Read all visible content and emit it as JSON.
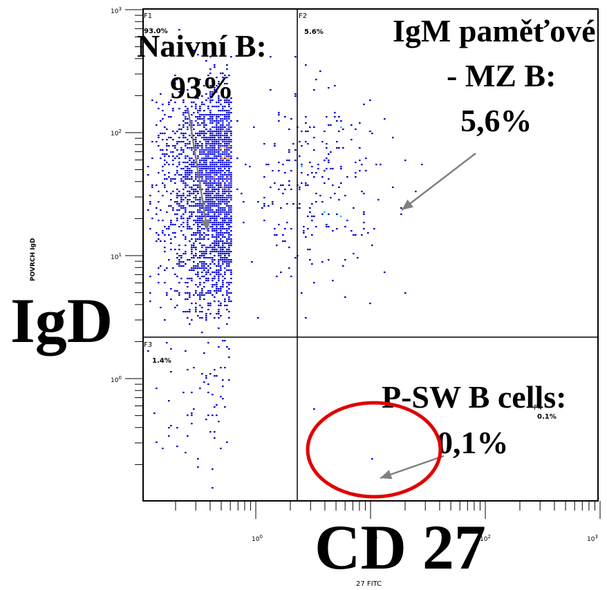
{
  "chart_data": {
    "type": "scatter",
    "subtype": "flow-cytometry-density-dot-plot",
    "x_axis": {
      "label": "27 FITC",
      "big_label": "CD 27",
      "scale": "log",
      "range": [
        0.06,
        1000
      ],
      "tick_labels": [
        {
          "value": 1,
          "text": "10",
          "exp": "0"
        },
        {
          "value": 10,
          "text": "10",
          "exp": "1"
        },
        {
          "value": 100,
          "text": "10",
          "exp": "2"
        },
        {
          "value": 1000,
          "text": "10",
          "exp": "3"
        }
      ]
    },
    "y_axis": {
      "label": "POVRCH IgD",
      "big_label": "IgD",
      "scale": "log",
      "range": [
        0.08,
        1000
      ],
      "tick_labels": [
        {
          "value": 1,
          "text": "10",
          "exp": "0"
        },
        {
          "value": 10,
          "text": "10",
          "exp": "1"
        },
        {
          "value": 100,
          "text": "10",
          "exp": "2"
        },
        {
          "value": 1000,
          "text": "10",
          "exp": "3"
        }
      ]
    },
    "gates": {
      "x": 0.6,
      "y": 3.0
    },
    "quadrants": [
      {
        "id": "F1",
        "label": "F1",
        "percent": "93.0%"
      },
      {
        "id": "F2",
        "label": "F2",
        "percent": "5.6%"
      },
      {
        "id": "F3",
        "label": "F3",
        "percent": "1.4%"
      },
      {
        "id": "F4",
        "label": "F4",
        "percent": "0.1%"
      }
    ],
    "populations": [
      {
        "name": "naive-b",
        "center": [
          0.9,
          60
        ],
        "spread_log_x": 0.32,
        "spread_log_y": 0.3,
        "count": 3000,
        "quadrant": "F1"
      },
      {
        "name": "naive-b-tail",
        "center": [
          0.7,
          12
        ],
        "spread_log_x": 0.3,
        "spread_log_y": 0.35,
        "count": 900,
        "quadrant": "F1"
      },
      {
        "name": "igm-memory",
        "center": [
          3,
          40
        ],
        "spread_log_x": 0.35,
        "spread_log_y": 0.4,
        "count": 260,
        "quadrant": "F2"
      },
      {
        "name": "igd-low",
        "center": [
          0.6,
          0.7
        ],
        "spread_log_x": 0.3,
        "spread_log_y": 0.35,
        "count": 75,
        "quadrant": "F3"
      },
      {
        "name": "switched",
        "center": [
          5,
          0.3
        ],
        "spread_log_x": 0.4,
        "spread_log_y": 0.3,
        "count": 2,
        "quadrant": "F4"
      }
    ],
    "density_colors": [
      "#0000cc",
      "#1a1aff",
      "#00ccff",
      "#ff8800"
    ],
    "annotations": [
      {
        "id": "naive",
        "lines": [
          "Naivní B:",
          "93%"
        ]
      },
      {
        "id": "igm",
        "lines": [
          "IgM paměťové",
          "- MZ B:",
          "5,6%"
        ]
      },
      {
        "id": "psw",
        "lines": [
          "P-SW B cells:",
          "0,1%"
        ]
      }
    ],
    "highlight_color": "#e00000",
    "arrow_color": "#808080"
  }
}
